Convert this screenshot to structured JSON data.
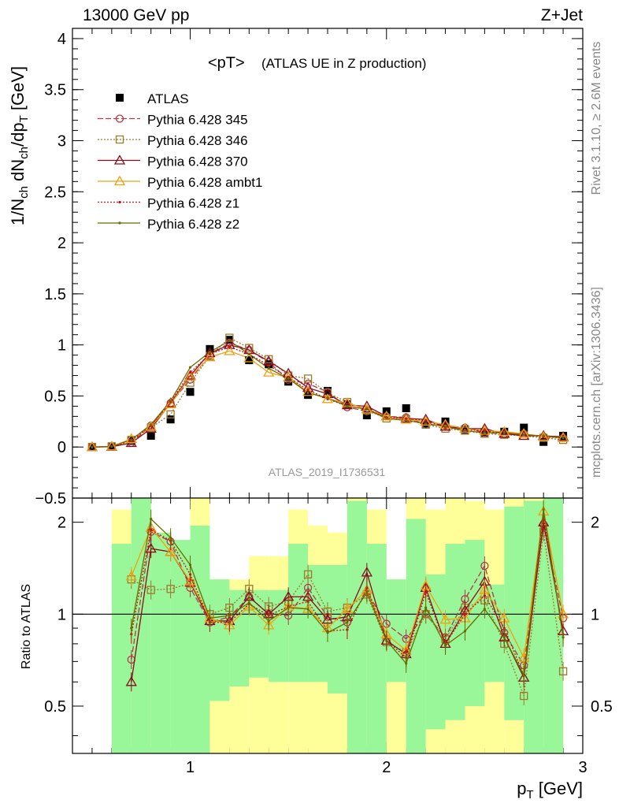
{
  "header": {
    "energy_label": "13000 GeV pp",
    "process_label": "Z+Jet",
    "side_rivet": "Rivet 3.1.10, ≥ 2.6M events",
    "side_mcplots": "mcplots.cern.ch [arXiv:1306.3436]",
    "analysis_id": "ATLAS_2019_I1736531"
  },
  "colors": {
    "ATLAS": "#000000",
    "Pythia 6.428 345": "#b03a48",
    "Pythia 6.428 346": "#9c7a2c",
    "Pythia 6.428 370": "#8b0a1a",
    "Pythia 6.428 ambt1": "#f0a010",
    "Pythia 6.428 z1": "#cc1010",
    "Pythia 6.428 z2": "#6b6b00",
    "band_inner": "#99f799",
    "band_outer": "#ffff99"
  },
  "chart_data": [
    {
      "type": "line",
      "title_main": "<pT>",
      "title_sub": "(ATLAS UE in Z production)",
      "ylabel": "1/N_ch dN_ch/dp_T [GeV]",
      "ylim": [
        -0.5,
        4.1
      ],
      "xlim": [
        0.4,
        3.0
      ],
      "yticks": [
        -0.5,
        0,
        0.5,
        1,
        1.5,
        2,
        2.5,
        3,
        3.5,
        4
      ],
      "ytick_labels": [
        "−0.5",
        "0",
        "0.5",
        "1",
        "1.5",
        "2",
        "2.5",
        "3",
        "3.5",
        "4"
      ],
      "legend_position": "top-left",
      "x": [
        0.5,
        0.6,
        0.7,
        0.8,
        0.9,
        1.0,
        1.1,
        1.2,
        1.3,
        1.4,
        1.5,
        1.6,
        1.7,
        1.8,
        1.9,
        2.0,
        2.1,
        2.2,
        2.3,
        2.4,
        2.5,
        2.6,
        2.7,
        2.8,
        2.9
      ],
      "series": [
        {
          "name": "ATLAS",
          "marker": "square",
          "values": [
            0.0,
            0.005,
            0.06,
            0.11,
            0.27,
            0.54,
            0.96,
            1.05,
            0.85,
            0.81,
            0.64,
            0.51,
            0.55,
            0.42,
            0.31,
            0.35,
            0.38,
            0.22,
            0.25,
            0.17,
            0.14,
            0.15,
            0.19,
            0.05,
            0.11
          ]
        },
        {
          "name": "Pythia 6.428 345",
          "marker": "circle",
          "dash": "7,3",
          "values": [
            0.0,
            0.004,
            0.04,
            0.21,
            0.43,
            0.66,
            0.9,
            1.02,
            0.95,
            0.83,
            0.66,
            0.62,
            0.54,
            0.39,
            0.35,
            0.3,
            0.29,
            0.22,
            0.21,
            0.19,
            0.14,
            0.13,
            0.13,
            0.1,
            0.09
          ]
        },
        {
          "name": "Pythia 6.428 346",
          "marker": "square_open",
          "dash": "2,2",
          "values": [
            0.0,
            0.007,
            0.07,
            0.19,
            0.32,
            0.63,
            0.89,
            1.07,
            0.97,
            0.86,
            0.7,
            0.67,
            0.53,
            0.44,
            0.36,
            0.28,
            0.27,
            0.22,
            0.18,
            0.16,
            0.13,
            0.12,
            0.11,
            0.09,
            0.07
          ]
        },
        {
          "name": "Pythia 6.428 370",
          "marker": "triangle",
          "dash": "",
          "values": [
            0.0,
            0.003,
            0.04,
            0.18,
            0.43,
            0.7,
            0.92,
            1.0,
            0.95,
            0.84,
            0.72,
            0.58,
            0.52,
            0.41,
            0.4,
            0.3,
            0.28,
            0.27,
            0.2,
            0.18,
            0.18,
            0.13,
            0.11,
            0.11,
            0.1
          ]
        },
        {
          "name": "Pythia 6.428 ambt1",
          "marker": "triangle",
          "dash": "",
          "values": [
            0.0,
            0.006,
            0.08,
            0.2,
            0.42,
            0.69,
            0.88,
            0.94,
            0.87,
            0.73,
            0.68,
            0.54,
            0.47,
            0.43,
            0.37,
            0.3,
            0.27,
            0.25,
            0.22,
            0.18,
            0.16,
            0.15,
            0.13,
            0.1,
            0.09
          ]
        },
        {
          "name": "Pythia 6.428 z1",
          "marker": "dot",
          "dash": "2,2",
          "values": [
            0.0,
            0.005,
            0.06,
            0.21,
            0.44,
            0.73,
            0.91,
            0.98,
            0.91,
            0.8,
            0.68,
            0.56,
            0.47,
            0.4,
            0.37,
            0.29,
            0.28,
            0.26,
            0.19,
            0.17,
            0.16,
            0.13,
            0.12,
            0.1,
            0.09
          ]
        },
        {
          "name": "Pythia 6.428 z2",
          "marker": "dot",
          "dash": "",
          "values": [
            0.0,
            0.006,
            0.07,
            0.22,
            0.45,
            0.78,
            0.93,
            1.04,
            0.91,
            0.77,
            0.67,
            0.53,
            0.48,
            0.4,
            0.37,
            0.28,
            0.26,
            0.23,
            0.2,
            0.16,
            0.14,
            0.14,
            0.12,
            0.11,
            0.09
          ]
        }
      ]
    },
    {
      "type": "line",
      "ylabel": "Ratio to ATLAS",
      "xlabel": "p_T [GeV]",
      "ylim": [
        0.35,
        2.4
      ],
      "xlim": [
        0.4,
        3.0
      ],
      "yticks": [
        0.5,
        1,
        2
      ],
      "ytick_labels": [
        "0.5",
        "1",
        "2"
      ],
      "xticks": [
        1,
        2,
        3
      ],
      "xtick_labels": [
        "1",
        "2",
        "3"
      ],
      "band_edges": [
        0.6,
        0.7,
        0.8,
        0.9,
        1.0,
        1.1,
        1.2,
        1.3,
        1.4,
        1.5,
        1.6,
        1.7,
        1.8,
        1.9,
        2.0,
        2.1,
        2.2,
        2.3,
        2.4,
        2.5,
        2.6,
        2.7,
        2.8,
        2.9
      ],
      "band_inner": [
        [
          0.35,
          1.7
        ],
        [
          0.35,
          2.4
        ],
        [
          0.35,
          1.85
        ],
        [
          0.35,
          1.75
        ],
        [
          0.35,
          1.95
        ],
        [
          0.52,
          1.3
        ],
        [
          0.58,
          1.2
        ],
        [
          0.62,
          1.2
        ],
        [
          0.6,
          1.2
        ],
        [
          0.6,
          1.7
        ],
        [
          0.6,
          1.45
        ],
        [
          0.55,
          1.45
        ],
        [
          0.35,
          2.35
        ],
        [
          0.35,
          1.7
        ],
        [
          0.6,
          1.3
        ],
        [
          0.35,
          2.05
        ],
        [
          0.42,
          1.35
        ],
        [
          0.45,
          1.7
        ],
        [
          0.5,
          1.75
        ],
        [
          0.6,
          1.25
        ],
        [
          0.45,
          2.25
        ],
        [
          0.35,
          2.35
        ],
        [
          0.35,
          2.4
        ]
      ],
      "band_outer": [
        [
          0.35,
          2.2
        ],
        [
          0.35,
          2.4
        ],
        [
          0.35,
          1.85
        ],
        [
          0.35,
          1.75
        ],
        [
          0.35,
          2.4
        ],
        [
          0.35,
          1.3
        ],
        [
          0.35,
          1.3
        ],
        [
          0.35,
          1.55
        ],
        [
          0.35,
          1.55
        ],
        [
          0.35,
          2.2
        ],
        [
          0.35,
          1.95
        ],
        [
          0.35,
          1.85
        ],
        [
          0.35,
          2.4
        ],
        [
          0.35,
          2.2
        ],
        [
          0.35,
          1.3
        ],
        [
          0.35,
          2.4
        ],
        [
          0.35,
          2.2
        ],
        [
          0.35,
          2.4
        ],
        [
          0.35,
          2.35
        ],
        [
          0.35,
          2.2
        ],
        [
          0.35,
          2.4
        ],
        [
          0.35,
          2.4
        ],
        [
          0.35,
          2.2
        ]
      ],
      "x": [
        0.7,
        0.8,
        0.9,
        1.0,
        1.1,
        1.2,
        1.3,
        1.4,
        1.5,
        1.6,
        1.7,
        1.8,
        1.9,
        2.0,
        2.1,
        2.2,
        2.3,
        2.4,
        2.5,
        2.6,
        2.7,
        2.8,
        2.9
      ],
      "series": [
        {
          "name": "Pythia 6.428 345",
          "values": [
            0.71,
            1.86,
            1.73,
            1.22,
            0.94,
            0.98,
            1.14,
            1.0,
            0.99,
            1.22,
            0.98,
            0.94,
            1.18,
            0.93,
            0.83,
            1.0,
            0.84,
            1.12,
            1.44,
            0.87,
            0.68,
            1.96,
            0.97
          ]
        },
        {
          "name": "Pythia 6.428 346",
          "values": [
            1.3,
            1.2,
            1.21,
            1.26,
            1.0,
            1.05,
            1.21,
            1.06,
            1.1,
            1.35,
            1.02,
            1.05,
            1.16,
            0.81,
            0.75,
            1.0,
            0.83,
            1.05,
            1.11,
            0.8,
            0.54,
            1.86,
            0.65
          ]
        },
        {
          "name": "Pythia 6.428 370",
          "values": [
            0.6,
            1.64,
            1.6,
            1.27,
            0.95,
            0.95,
            1.14,
            1.0,
            1.14,
            1.14,
            0.96,
            0.98,
            1.37,
            0.82,
            0.74,
            1.22,
            0.8,
            1.03,
            1.28,
            0.84,
            0.62,
            2.0,
            0.88
          ]
        },
        {
          "name": "Pythia 6.428 ambt1",
          "values": [
            1.33,
            1.92,
            1.6,
            1.28,
            0.97,
            0.92,
            1.06,
            0.92,
            1.06,
            1.04,
            0.9,
            1.04,
            1.2,
            0.86,
            0.76,
            1.24,
            0.96,
            0.97,
            1.2,
            0.97,
            0.72,
            2.17,
            1.0
          ]
        },
        {
          "name": "Pythia 6.428 z1",
          "values": [
            0.86,
            1.89,
            1.74,
            1.35,
            0.94,
            0.94,
            1.08,
            0.99,
            1.06,
            1.1,
            0.88,
            0.89,
            1.22,
            0.82,
            0.72,
            1.18,
            0.8,
            1.0,
            1.15,
            0.9,
            0.63,
            2.08,
            0.86
          ]
        },
        {
          "name": "Pythia 6.428 z2",
          "values": [
            0.9,
            2.05,
            1.78,
            1.45,
            0.97,
            0.99,
            1.09,
            0.95,
            1.05,
            1.04,
            0.87,
            0.94,
            1.18,
            0.82,
            0.69,
            1.05,
            0.79,
            0.88,
            1.04,
            0.84,
            0.63,
            2.2,
            0.84
          ]
        }
      ]
    }
  ]
}
